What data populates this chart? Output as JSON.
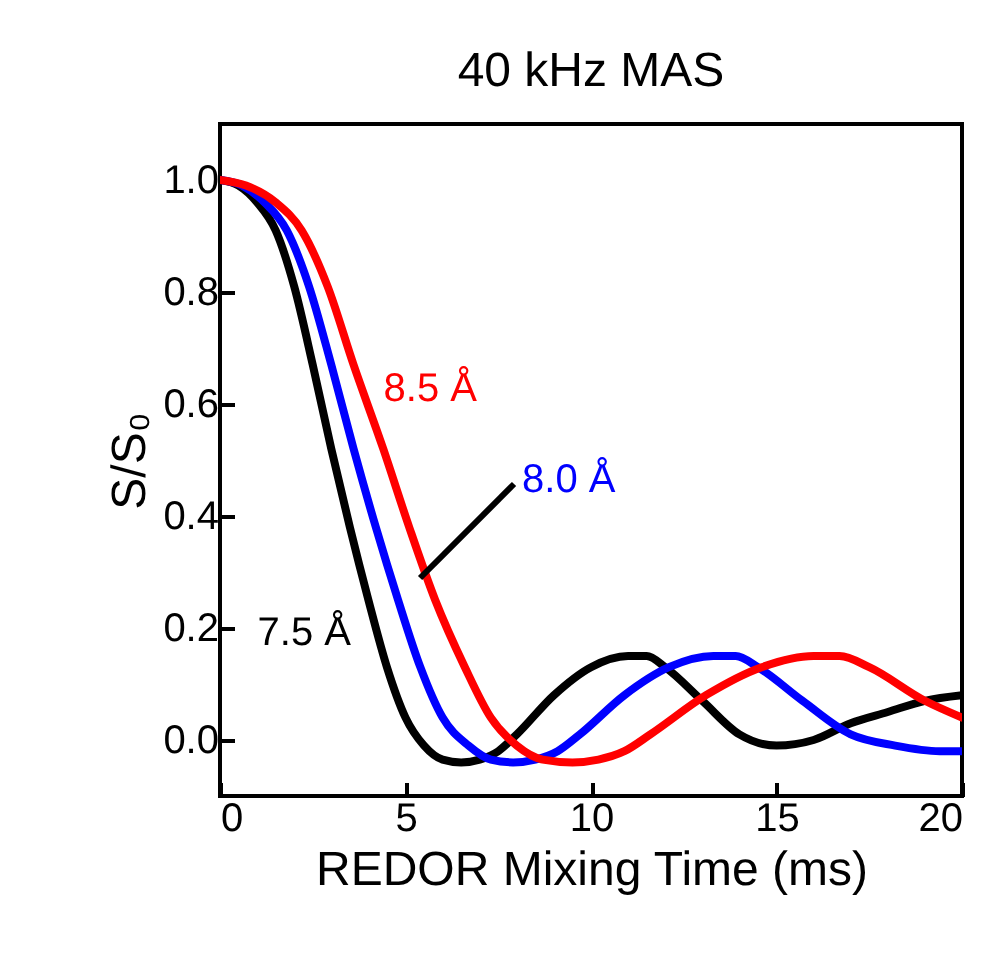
{
  "chart_data": {
    "type": "line",
    "title": "40 kHz MAS",
    "xlabel": "REDOR Mixing Time (ms)",
    "ylabel": "S/S₀",
    "xlim": [
      0,
      20
    ],
    "xticks": [
      0,
      5,
      10,
      15,
      20
    ],
    "ylim": [
      -0.1,
      1.1
    ],
    "yticks": [
      {
        "value": 0,
        "label": "0.0"
      },
      {
        "value": 0.2,
        "label": "0.2"
      },
      {
        "value": 0.4,
        "label": "0.4"
      },
      {
        "value": 0.6,
        "label": "0.6"
      },
      {
        "value": 0.8,
        "label": "0.8"
      },
      {
        "value": 1,
        "label": "1.0"
      }
    ],
    "line_style": "solid",
    "series": [
      {
        "name": "7.5 Å",
        "color": "#000000",
        "x": [
          0,
          0.5,
          1,
          1.5,
          2,
          2.5,
          3,
          3.5,
          4,
          4.5,
          5,
          5.5,
          6,
          6.5,
          7,
          7.5,
          8,
          9,
          10,
          11,
          11.5,
          12,
          13,
          14,
          15,
          16,
          17,
          18,
          19,
          20
        ],
        "values": [
          1,
          0.99,
          0.96,
          0.91,
          0.81,
          0.67,
          0.52,
          0.38,
          0.25,
          0.13,
          0.04,
          -0.01,
          -0.035,
          -0.04,
          -0.035,
          -0.02,
          0.01,
          0.08,
          0.13,
          0.15,
          0.15,
          0.13,
          0.07,
          0.01,
          -0.01,
          0,
          0.03,
          0.05,
          0.07,
          0.08
        ]
      },
      {
        "name": "8.0 Å",
        "color": "#0000ff",
        "x": [
          0,
          0.6,
          1.2,
          1.8,
          2.4,
          3,
          3.6,
          4.2,
          4.8,
          5.4,
          6,
          6.7,
          7.3,
          7.9,
          8.5,
          9.1,
          9.7,
          10.9,
          12.1,
          13.3,
          13.9,
          14.5,
          15.7,
          17,
          18.2,
          19.4,
          20
        ],
        "values": [
          1,
          0.99,
          0.96,
          0.91,
          0.81,
          0.67,
          0.52,
          0.38,
          0.25,
          0.13,
          0.04,
          -0.01,
          -0.035,
          -0.04,
          -0.035,
          -0.02,
          0.01,
          0.08,
          0.13,
          0.15,
          0.15,
          0.13,
          0.07,
          0.01,
          -0.01,
          -0.02,
          -0.02
        ]
      },
      {
        "name": "8.5 Å",
        "color": "#ff0000",
        "x": [
          0,
          0.7,
          1.5,
          2.2,
          2.9,
          3.6,
          4.4,
          5.1,
          5.8,
          6.6,
          7.3,
          8,
          8.7,
          9.5,
          10.2,
          10.9,
          11.6,
          13.1,
          14.6,
          16,
          16.7,
          17.5,
          19,
          20
        ],
        "values": [
          1,
          0.99,
          0.96,
          0.91,
          0.81,
          0.67,
          0.52,
          0.38,
          0.25,
          0.13,
          0.04,
          -0.01,
          -0.035,
          -0.04,
          -0.035,
          -0.02,
          0.01,
          0.08,
          0.13,
          0.15,
          0.15,
          0.13,
          0.07,
          0.04
        ]
      }
    ]
  }
}
